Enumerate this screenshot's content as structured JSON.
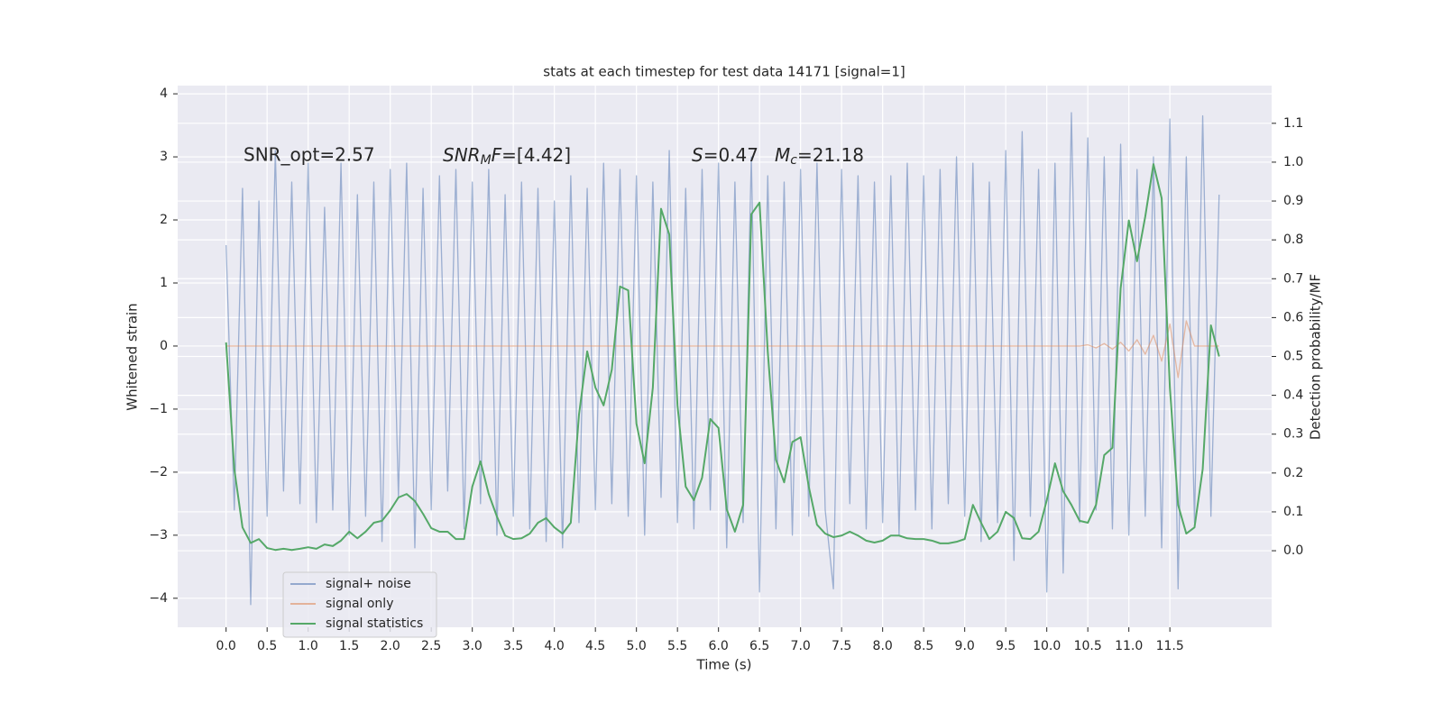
{
  "chart_data": {
    "type": "line",
    "title": "stats at each timestep for test data 14171 [signal=1]",
    "xlabel": "Time (s)",
    "ylabel": "Whitened strain",
    "y2label": "Detection probability/MF",
    "annotations": [
      "SNR_opt=2.57",
      "SNR",
      "M",
      "F",
      "=[4.42]",
      "S",
      "=0.47",
      "M",
      "c",
      "=21.18"
    ],
    "xlim": [
      -0.59,
      12.74
    ],
    "ylim": [
      -4.46,
      4.13
    ],
    "y2lim": [
      -0.197,
      1.197
    ],
    "grid": true,
    "legend": "lower left",
    "xticks": [
      {
        "value": 0,
        "label": "0.0"
      },
      0.5,
      {
        "value": 1,
        "label": "1.0"
      },
      1.5,
      {
        "value": 2,
        "label": "2.0"
      },
      2.5,
      {
        "value": 3,
        "label": "3.0"
      },
      3.5,
      {
        "value": 4,
        "label": "4.0"
      },
      4.5,
      {
        "value": 5,
        "label": "5.0"
      },
      5.5,
      {
        "value": 6,
        "label": "6.0"
      },
      6.5,
      {
        "value": 7,
        "label": "7.0"
      },
      7.5,
      {
        "value": 8,
        "label": "8.0"
      },
      8.5,
      {
        "value": 9,
        "label": "9.0"
      },
      9.5,
      {
        "value": 10,
        "label": "10.0"
      },
      10.5,
      {
        "value": 11,
        "label": "11.0"
      },
      11.5
    ],
    "yticks": [
      {
        "value": -4,
        "label": "−4"
      },
      {
        "value": -3,
        "label": "−3"
      },
      {
        "value": -2,
        "label": "−2"
      },
      {
        "value": -1,
        "label": "−1"
      },
      0,
      1,
      2,
      3,
      4
    ],
    "y2ticks": [
      {
        "value": 0,
        "label": "0.0"
      },
      0.1,
      0.2,
      0.3,
      0.4,
      0.5,
      0.6,
      0.7,
      0.8,
      0.9,
      {
        "value": 1,
        "label": "1.0"
      },
      1.1
    ],
    "x": [
      0,
      0.1,
      0.2,
      0.3,
      0.4,
      0.5,
      0.6,
      0.7,
      0.8,
      0.9,
      1,
      1.1,
      1.2,
      1.3,
      1.4,
      1.5,
      1.6,
      1.7,
      1.8,
      1.9,
      2,
      2.1,
      2.2,
      2.3,
      2.4,
      2.5,
      2.6,
      2.7,
      2.8,
      2.9,
      3,
      3.1,
      3.2,
      3.3,
      3.4,
      3.5,
      3.6,
      3.7,
      3.8,
      3.9,
      4,
      4.1,
      4.2,
      4.3,
      4.4,
      4.5,
      4.6,
      4.7,
      4.8,
      4.9,
      5,
      5.1,
      5.2,
      5.3,
      5.4,
      5.5,
      5.6,
      5.7,
      5.8,
      5.9,
      6,
      6.1,
      6.2,
      6.3,
      6.4,
      6.5,
      6.6,
      6.7,
      6.8,
      6.9,
      7,
      7.1,
      7.2,
      7.3,
      7.4,
      7.5,
      7.6,
      7.7,
      7.8,
      7.9,
      8,
      8.1,
      8.2,
      8.3,
      8.4,
      8.5,
      8.6,
      8.7,
      8.8,
      8.9,
      9,
      9.1,
      9.2,
      9.3,
      9.4,
      9.5,
      9.6,
      9.7,
      9.8,
      9.9,
      10,
      10.1,
      10.2,
      10.3,
      10.4,
      10.5,
      10.6,
      10.7,
      10.8,
      10.9,
      11,
      11.1,
      11.2,
      11.3,
      11.4,
      11.5,
      11.6,
      11.7,
      11.8,
      11.9,
      12,
      12.1
    ],
    "series": [
      {
        "name": "signal+ noise",
        "color": "#4c72b0",
        "values": [
          1.6,
          -2.6,
          2.5,
          -4.1,
          2.3,
          -2.7,
          3.1,
          -2.3,
          2.6,
          -2.5,
          2.9,
          -2.8,
          2.2,
          -2.6,
          2.9,
          -3.0,
          2.4,
          -2.7,
          2.6,
          -3.1,
          2.8,
          -2.4,
          2.9,
          -3.2,
          2.5,
          -2.6,
          2.7,
          -2.3,
          2.8,
          -2.9,
          2.6,
          -2.5,
          2.8,
          -3.0,
          2.4,
          -2.7,
          2.6,
          -2.9,
          2.5,
          -3.1,
          2.3,
          -3.2,
          2.7,
          -2.8,
          2.5,
          -2.6,
          2.9,
          -2.5,
          2.8,
          -2.7,
          2.7,
          -3.0,
          2.6,
          -2.4,
          3.1,
          -2.8,
          2.5,
          -2.9,
          2.8,
          -2.6,
          2.9,
          -3.2,
          2.6,
          -2.8,
          3.0,
          -3.9,
          2.7,
          -2.9,
          2.6,
          -3.0,
          2.8,
          -2.7,
          2.9,
          -2.6,
          -3.85,
          2.8,
          -2.5,
          2.7,
          -2.9,
          2.6,
          -2.8,
          2.7,
          -3.0,
          2.9,
          -2.6,
          2.7,
          -2.9,
          2.8,
          -2.5,
          3.0,
          -2.7,
          2.9,
          -3.1,
          2.6,
          -2.8,
          3.1,
          -3.4,
          3.4,
          -2.7,
          2.8,
          -3.9,
          2.9,
          -3.6,
          3.7,
          -2.8,
          3.3,
          -2.6,
          3.0,
          -2.9,
          3.2,
          -3.0,
          2.8,
          -2.7,
          3.0,
          -3.2,
          3.6,
          -3.85,
          3.0,
          -2.8,
          3.65,
          -2.7,
          2.4
        ]
      },
      {
        "name": "signal only",
        "color": "#dd8452",
        "values": [
          0,
          0,
          0,
          0,
          0,
          0,
          0,
          0,
          0,
          0,
          0,
          0,
          0,
          0,
          0,
          0,
          0,
          0,
          0,
          0,
          0,
          0,
          0,
          0,
          0,
          0,
          0,
          0,
          0,
          0,
          0,
          0,
          0,
          0,
          0,
          0,
          0,
          0,
          0,
          0,
          0,
          0,
          0,
          0,
          0,
          0,
          0,
          0,
          0,
          0,
          0,
          0,
          0,
          0,
          0,
          0,
          0,
          0,
          0,
          0,
          0,
          0,
          0,
          0,
          0,
          0,
          0,
          0,
          0,
          0,
          0,
          0,
          0,
          0,
          0,
          0,
          0,
          0,
          0,
          0,
          0,
          0,
          0,
          0,
          0,
          0,
          0,
          0,
          0,
          0,
          0,
          0,
          0,
          0,
          0,
          0,
          0,
          0,
          0,
          0,
          0,
          0,
          0,
          0,
          0,
          0.02,
          -0.03,
          0.04,
          -0.05,
          0.06,
          -0.08,
          0.1,
          -0.13,
          0.17,
          -0.24,
          0.35,
          -0.5,
          0.4,
          0,
          0,
          0,
          0
        ]
      },
      {
        "name": "signal statistics",
        "color": "#55a868",
        "axis": "y2",
        "values": [
          0.536,
          0.21,
          0.06,
          0.02,
          0.03,
          0.007,
          0.002,
          0.005,
          0.002,
          0.005,
          0.009,
          0.005,
          0.016,
          0.012,
          0.026,
          0.049,
          0.032,
          0.049,
          0.072,
          0.077,
          0.104,
          0.137,
          0.146,
          0.128,
          0.095,
          0.058,
          0.049,
          0.049,
          0.03,
          0.03,
          0.165,
          0.23,
          0.146,
          0.088,
          0.039,
          0.03,
          0.032,
          0.044,
          0.072,
          0.084,
          0.06,
          0.044,
          0.072,
          0.35,
          0.513,
          0.42,
          0.374,
          0.466,
          0.68,
          0.67,
          0.327,
          0.225,
          0.42,
          0.88,
          0.814,
          0.374,
          0.165,
          0.13,
          0.188,
          0.339,
          0.316,
          0.107,
          0.049,
          0.118,
          0.866,
          0.896,
          0.513,
          0.234,
          0.176,
          0.28,
          0.292,
          0.165,
          0.067,
          0.044,
          0.035,
          0.039,
          0.049,
          0.039,
          0.026,
          0.021,
          0.026,
          0.039,
          0.039,
          0.032,
          0.03,
          0.03,
          0.026,
          0.019,
          0.019,
          0.023,
          0.03,
          0.118,
          0.072,
          0.03,
          0.049,
          0.1,
          0.084,
          0.032,
          0.03,
          0.049,
          0.13,
          0.225,
          0.153,
          0.118,
          0.077,
          0.072,
          0.118,
          0.246,
          0.265,
          0.675,
          0.85,
          0.745,
          0.86,
          0.995,
          0.907,
          0.42,
          0.118,
          0.044,
          0.06,
          0.21,
          0.58,
          0.5
        ]
      }
    ]
  }
}
